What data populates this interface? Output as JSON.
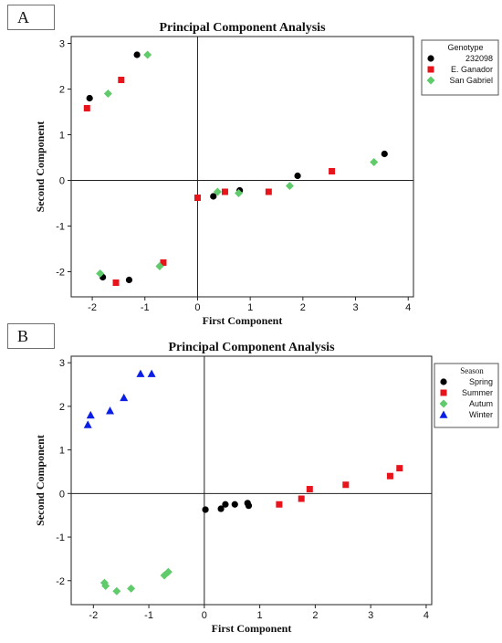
{
  "panels": [
    {
      "label": "A"
    },
    {
      "label": "B"
    }
  ],
  "chart_data": [
    {
      "type": "scatter",
      "title": "Principal Component Analysis",
      "xlabel": "First Component",
      "ylabel": "Second Component",
      "xlim": [
        -2.4,
        4.1
      ],
      "ylim": [
        -2.55,
        3.15
      ],
      "xticks": [
        -2,
        -1,
        0,
        1,
        2,
        3,
        4
      ],
      "yticks": [
        -2,
        -1,
        0,
        1,
        2,
        3
      ],
      "xtick_labels": [
        "-2",
        "-1",
        "0",
        "1",
        "2",
        "3",
        "4"
      ],
      "ytick_labels": [
        "-2",
        "-1",
        "0",
        "1",
        "2",
        "3"
      ],
      "grid": false,
      "reference_lines": {
        "x": 0,
        "y": 0
      },
      "legend": {
        "title": "Genotype",
        "placement": "right"
      },
      "series": [
        {
          "name": "232098",
          "marker": "circle",
          "color": "#000000",
          "x": [
            -2.05,
            -1.15,
            -1.8,
            -1.3,
            0.3,
            0.8,
            1.9,
            3.55
          ],
          "y": [
            1.8,
            2.75,
            -2.12,
            -2.18,
            -0.35,
            -0.22,
            0.1,
            0.58
          ]
        },
        {
          "name": "E. Ganador",
          "marker": "square",
          "color": "#e8141c",
          "x": [
            -2.1,
            -1.45,
            -1.55,
            -0.65,
            0.0,
            0.52,
            1.35,
            2.55
          ],
          "y": [
            1.58,
            2.2,
            -2.24,
            -1.8,
            -0.38,
            -0.25,
            -0.25,
            0.2
          ]
        },
        {
          "name": "San Gabriel",
          "marker": "diamond",
          "color": "#5fcb6b",
          "x": [
            -1.7,
            -0.95,
            -1.85,
            -0.72,
            0.38,
            0.78,
            1.75,
            3.35
          ],
          "y": [
            1.9,
            2.75,
            -2.04,
            -1.88,
            -0.25,
            -0.28,
            -0.12,
            0.4
          ]
        }
      ]
    },
    {
      "type": "scatter",
      "title": "Principal Component Analysis",
      "xlabel": "First Component",
      "ylabel": "Second Component",
      "xlim": [
        -2.4,
        4.1
      ],
      "ylim": [
        -2.55,
        3.15
      ],
      "xticks": [
        -2,
        -1,
        0,
        1,
        2,
        3,
        4
      ],
      "yticks": [
        -2,
        -1,
        0,
        1,
        2,
        3
      ],
      "xtick_labels": [
        "-2",
        "-1",
        "0",
        "1",
        "2",
        "3",
        "4"
      ],
      "ytick_labels": [
        "-2",
        "-1",
        "0",
        "1",
        "2",
        "3"
      ],
      "grid": false,
      "reference_lines": {
        "x": 0,
        "y": 0
      },
      "legend": {
        "title": "Season",
        "placement": "right"
      },
      "series": [
        {
          "name": "Spring",
          "marker": "circle",
          "color": "#000000",
          "x": [
            0.02,
            0.3,
            0.38,
            0.55,
            0.78,
            0.8
          ],
          "y": [
            -0.37,
            -0.35,
            -0.25,
            -0.25,
            -0.22,
            -0.28
          ]
        },
        {
          "name": "Summer",
          "marker": "square",
          "color": "#e8141c",
          "x": [
            1.35,
            1.75,
            1.9,
            2.55,
            3.35,
            3.52
          ],
          "y": [
            -0.25,
            -0.12,
            0.1,
            0.2,
            0.4,
            0.58
          ]
        },
        {
          "name": "Autum",
          "marker": "diamond",
          "color": "#5fcb6b",
          "x": [
            -1.8,
            -1.78,
            -1.58,
            -1.32,
            -0.72,
            -0.65
          ],
          "y": [
            -2.05,
            -2.12,
            -2.24,
            -2.18,
            -1.88,
            -1.8
          ]
        },
        {
          "name": "Winter",
          "marker": "triangle",
          "color": "#0b1ee6",
          "x": [
            -2.1,
            -2.05,
            -1.7,
            -1.45,
            -1.15,
            -0.95
          ],
          "y": [
            1.58,
            1.8,
            1.9,
            2.2,
            2.75,
            2.75
          ]
        }
      ]
    }
  ]
}
